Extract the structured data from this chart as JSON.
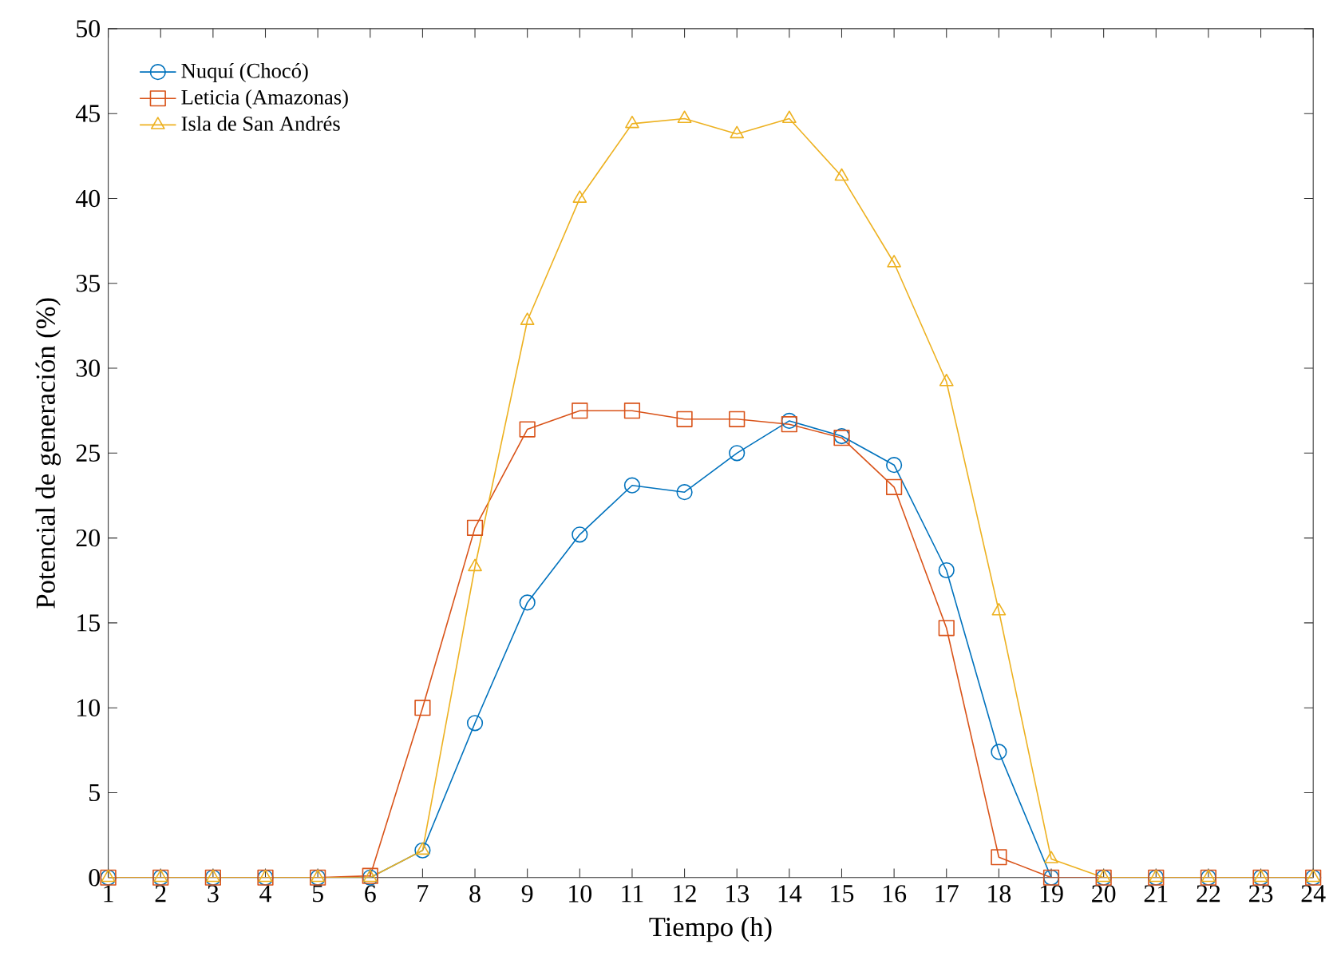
{
  "chart_data": {
    "type": "line",
    "xlabel": "Tiempo (h)",
    "ylabel": "Potencial de generación (%)",
    "x": [
      1,
      2,
      3,
      4,
      5,
      6,
      7,
      8,
      9,
      10,
      11,
      12,
      13,
      14,
      15,
      16,
      17,
      18,
      19,
      20,
      21,
      22,
      23,
      24
    ],
    "xlim": [
      1,
      24
    ],
    "xticks": [
      1,
      2,
      3,
      4,
      5,
      6,
      7,
      8,
      9,
      10,
      11,
      12,
      13,
      14,
      15,
      16,
      17,
      18,
      19,
      20,
      21,
      22,
      23,
      24
    ],
    "ylim": [
      0,
      50
    ],
    "yticks": [
      0,
      5,
      10,
      15,
      20,
      25,
      30,
      35,
      40,
      45,
      50
    ],
    "legend": "top left",
    "grid": false,
    "line_style": "solid",
    "series": [
      {
        "name": "Nuquí (Chocó)",
        "color": "#0072bd",
        "marker": "circle",
        "values": [
          0,
          0,
          0,
          0,
          0,
          0,
          1.6,
          9.1,
          16.2,
          20.2,
          23.1,
          22.7,
          25.0,
          26.9,
          26.0,
          24.3,
          18.1,
          7.4,
          0,
          0,
          0,
          0,
          0,
          0
        ]
      },
      {
        "name": "Leticia (Amazonas)",
        "color": "#d95319",
        "marker": "square",
        "values": [
          0,
          0,
          0,
          0,
          0,
          0.1,
          10.0,
          20.6,
          26.4,
          27.5,
          27.5,
          27.0,
          27.0,
          26.7,
          25.9,
          23.0,
          14.7,
          1.2,
          0,
          0,
          0,
          0,
          0,
          0
        ]
      },
      {
        "name": "Isla de San Andrés",
        "color": "#edb120",
        "marker": "triangle",
        "values": [
          0,
          0,
          0,
          0,
          0,
          0,
          1.6,
          18.3,
          32.8,
          40.0,
          44.4,
          44.7,
          43.8,
          44.7,
          41.3,
          36.2,
          29.2,
          15.7,
          1.1,
          0,
          0,
          0,
          0,
          0
        ]
      }
    ]
  }
}
